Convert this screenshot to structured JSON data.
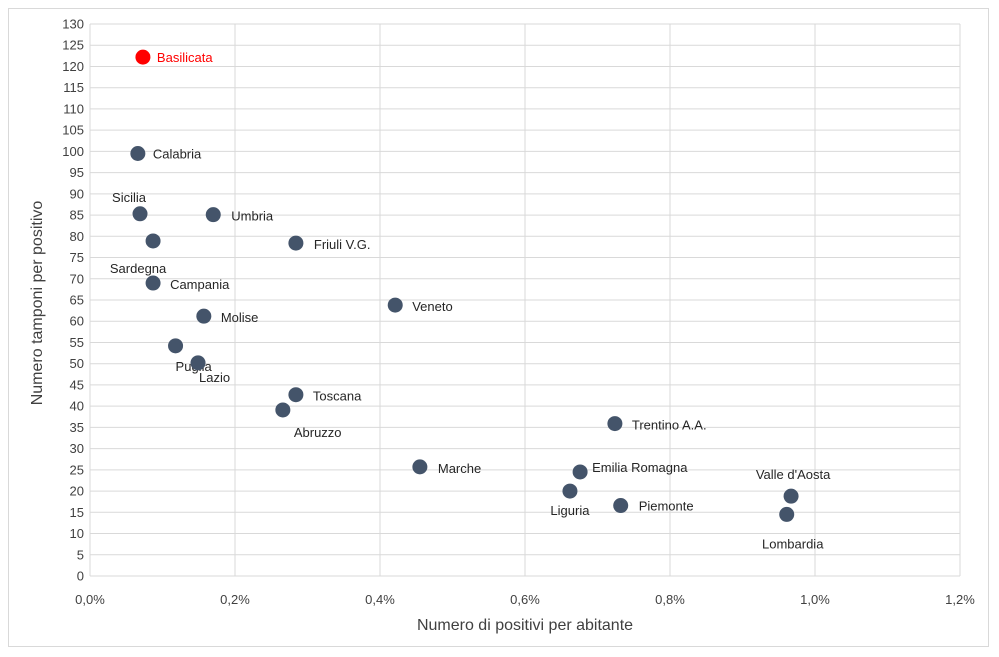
{
  "chart_data": {
    "type": "scatter",
    "title": "",
    "xlabel": "Numero di positivi per abitante",
    "ylabel": "Numero tamponi per positivo",
    "xlim": [
      0,
      1.2
    ],
    "ylim": [
      0,
      130
    ],
    "x_unit": "%",
    "x_ticks": [
      "0,0%",
      "0,2%",
      "0,4%",
      "0,6%",
      "0,8%",
      "1,0%",
      "1,2%"
    ],
    "y_ticks": [
      "0",
      "5",
      "10",
      "15",
      "20",
      "25",
      "30",
      "35",
      "40",
      "45",
      "50",
      "55",
      "60",
      "65",
      "70",
      "75",
      "80",
      "85",
      "90",
      "95",
      "100",
      "105",
      "110",
      "115",
      "120",
      "125",
      "130"
    ],
    "grid": true,
    "legend": "none",
    "colors": {
      "default": "#44546a",
      "highlight": "#ff0000",
      "grid": "#d9d9d9"
    },
    "points": [
      {
        "label": "Basilicata",
        "x": 0.073,
        "y": 122.2,
        "highlight": true
      },
      {
        "label": "Calabria",
        "x": 0.066,
        "y": 99.5
      },
      {
        "label": "Sicilia",
        "x": 0.069,
        "y": 85.3
      },
      {
        "label": "Sardegna",
        "x": 0.087,
        "y": 78.9
      },
      {
        "label": "Umbria",
        "x": 0.17,
        "y": 85.1
      },
      {
        "label": "Friuli V.G.",
        "x": 0.284,
        "y": 78.4
      },
      {
        "label": "Campania",
        "x": 0.087,
        "y": 69.0
      },
      {
        "label": "Molise",
        "x": 0.157,
        "y": 61.2
      },
      {
        "label": "Veneto",
        "x": 0.421,
        "y": 63.8
      },
      {
        "label": "Puglia",
        "x": 0.118,
        "y": 54.2
      },
      {
        "label": "Lazio",
        "x": 0.149,
        "y": 50.2
      },
      {
        "label": "Toscana",
        "x": 0.284,
        "y": 42.7
      },
      {
        "label": "Abruzzo",
        "x": 0.266,
        "y": 39.1
      },
      {
        "label": "Trentino A.A.",
        "x": 0.724,
        "y": 35.9
      },
      {
        "label": "Marche",
        "x": 0.455,
        "y": 25.7
      },
      {
        "label": "Emilia Romagna",
        "x": 0.676,
        "y": 24.5
      },
      {
        "label": "Liguria",
        "x": 0.662,
        "y": 20.0
      },
      {
        "label": "Piemonte",
        "x": 0.732,
        "y": 16.6
      },
      {
        "label": "Valle d'Aosta",
        "x": 0.967,
        "y": 18.8
      },
      {
        "label": "Lombardia",
        "x": 0.961,
        "y": 14.5
      }
    ]
  }
}
